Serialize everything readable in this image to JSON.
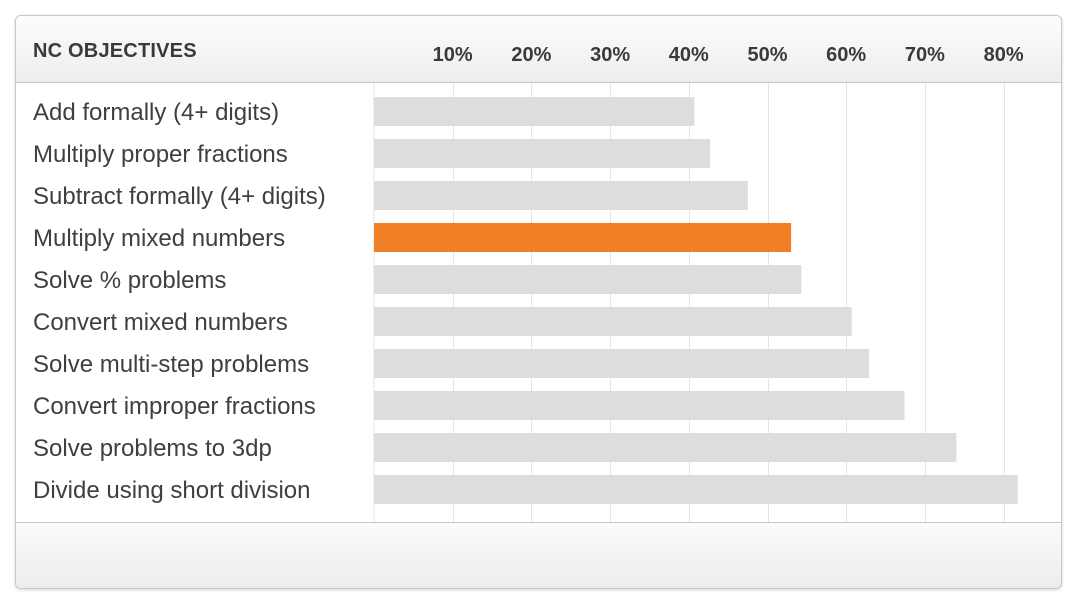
{
  "header": {
    "title": "NC OBJECTIVES"
  },
  "colors": {
    "bar_default": "#dddddd",
    "bar_highlight": "#f07f26",
    "grid": "#e4e4e4"
  },
  "chart_data": {
    "type": "bar",
    "orientation": "horizontal",
    "title": "",
    "xlabel": "",
    "ylabel": "NC OBJECTIVES",
    "xlim": [
      0,
      80
    ],
    "ticks": [
      10,
      20,
      30,
      40,
      50,
      60,
      70,
      80
    ],
    "tick_labels": [
      "10%",
      "20%",
      "30%",
      "40%",
      "50%",
      "60%",
      "70%",
      "80%"
    ],
    "grid": true,
    "legend": "none",
    "categories": [
      "Add formally (4+ digits)",
      "Multiply proper fractions",
      "Subtract formally (4+ digits)",
      "Multiply mixed numbers",
      "Solve % problems",
      "Convert mixed numbers",
      "Solve multi-step problems",
      "Convert improper fractions",
      "Solve problems to 3dp",
      "Divide using short division"
    ],
    "values": [
      40.7,
      42.7,
      47.5,
      53.0,
      54.3,
      60.7,
      62.9,
      67.4,
      74.0,
      81.8
    ],
    "highlighted_category": "Multiply mixed numbers"
  }
}
